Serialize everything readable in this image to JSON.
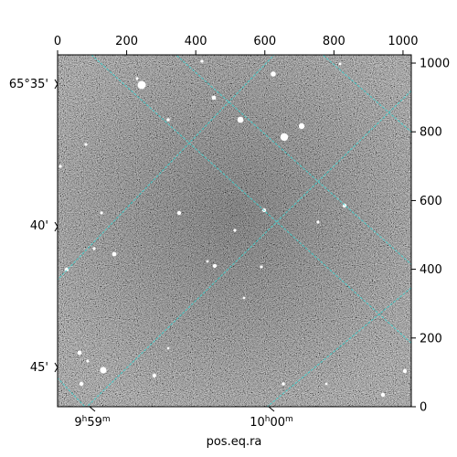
{
  "chart_data": {
    "type": "sky-image",
    "xlabel": "pos.eq.ra",
    "ylabel": "",
    "pixel_axes": {
      "x": {
        "range": [
          0,
          1024
        ],
        "ticks": [
          "0",
          "200",
          "400",
          "600",
          "800",
          "1000"
        ],
        "tick_values": [
          0,
          200,
          400,
          600,
          800,
          1000
        ]
      },
      "y": {
        "range": [
          0,
          1024
        ],
        "ticks": [
          "0",
          "200",
          "400",
          "600",
          "800",
          "1000"
        ],
        "tick_values": [
          0,
          200,
          400,
          600,
          800,
          1000
        ]
      }
    },
    "world_axes": {
      "ra_ticks": [
        "9h59m",
        "10h00m"
      ],
      "dec_ticks": [
        "65°35'",
        "40'",
        "45'"
      ]
    },
    "grid": true,
    "colors": {
      "grid": "#3fd1cf",
      "background": "#4a4a4a",
      "axis": "#000000"
    }
  }
}
